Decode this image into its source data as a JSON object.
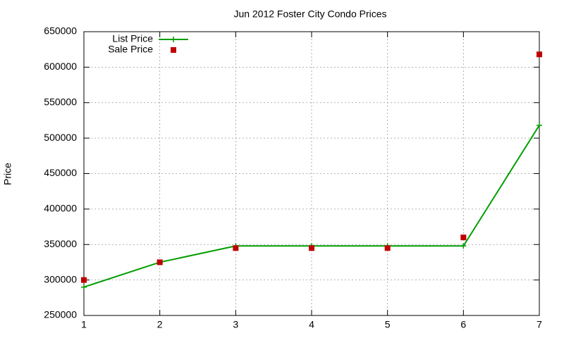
{
  "chart_data": {
    "type": "line",
    "title": "Jun 2012 Foster City Condo Prices",
    "y_label": "Price",
    "x": [
      1,
      2,
      3,
      4,
      5,
      6,
      7
    ],
    "xlim": [
      1,
      7
    ],
    "xticks": [
      1,
      2,
      3,
      4,
      5,
      6,
      7
    ],
    "ylim": [
      250000,
      650000
    ],
    "yticks": [
      250000,
      300000,
      350000,
      400000,
      450000,
      500000,
      550000,
      600000,
      650000
    ],
    "grid": true,
    "legend": "top-left",
    "series": [
      {
        "name": "List Price",
        "color": "#009e00",
        "style": "linespoints",
        "values": [
          290000,
          325000,
          348000,
          348000,
          348000,
          348000,
          518000
        ]
      },
      {
        "name": "Sale Price",
        "color": "#c00000",
        "style": "points",
        "values": [
          300000,
          325000,
          345000,
          345000,
          345000,
          360000,
          618000
        ]
      }
    ]
  }
}
